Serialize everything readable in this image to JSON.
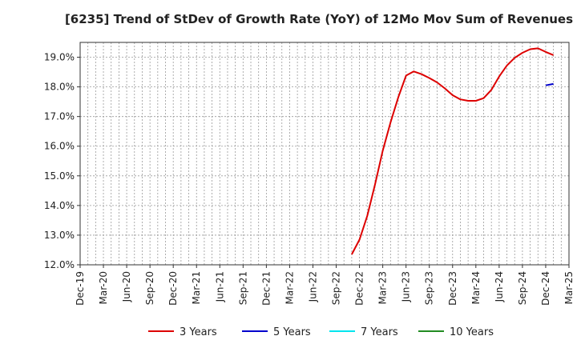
{
  "chart_data": {
    "type": "line",
    "title": "[6235]  Trend of StDev of Growth Rate (YoY) of 12Mo Mov Sum of Revenues",
    "xlabel": "",
    "ylabel": "",
    "ylim": [
      12.0,
      19.5
    ],
    "y_ticks": [
      12.0,
      13.0,
      14.0,
      15.0,
      16.0,
      17.0,
      18.0,
      19.0
    ],
    "y_tick_labels": [
      "12.0%",
      "13.0%",
      "14.0%",
      "15.0%",
      "16.0%",
      "17.0%",
      "18.0%",
      "19.0%"
    ],
    "x_range": [
      0,
      63
    ],
    "x_ticks": [
      0,
      3,
      6,
      9,
      12,
      15,
      18,
      21,
      24,
      27,
      30,
      33,
      36,
      39,
      42,
      45,
      48,
      51,
      54,
      57,
      60,
      63
    ],
    "x_tick_labels": [
      "Dec-19",
      "Mar-20",
      "Jun-20",
      "Sep-20",
      "Dec-20",
      "Mar-21",
      "Jun-21",
      "Sep-21",
      "Dec-21",
      "Mar-22",
      "Jun-22",
      "Sep-22",
      "Dec-22",
      "Mar-23",
      "Jun-23",
      "Sep-23",
      "Dec-23",
      "Mar-24",
      "Jun-24",
      "Sep-24",
      "Dec-24",
      "Mar-25"
    ],
    "grid": true,
    "legend_position": "bottom",
    "series": [
      {
        "name": "3 Years",
        "color": "#dd0000",
        "x": [
          35,
          36,
          37,
          38,
          39,
          40,
          41,
          42,
          43,
          44,
          45,
          46,
          47,
          48,
          49,
          50,
          51,
          52,
          53,
          54,
          55,
          56,
          57,
          58,
          59,
          60,
          61
        ],
        "y": [
          12.35,
          12.85,
          13.65,
          14.7,
          15.85,
          16.8,
          17.65,
          18.38,
          18.52,
          18.43,
          18.3,
          18.15,
          17.95,
          17.72,
          17.58,
          17.53,
          17.53,
          17.62,
          17.9,
          18.35,
          18.72,
          18.98,
          19.15,
          19.27,
          19.3,
          19.18,
          19.07
        ]
      },
      {
        "name": "5 Years",
        "color": "#0000cc",
        "x": [
          60,
          61
        ],
        "y": [
          18.05,
          18.1
        ]
      },
      {
        "name": "7 Years",
        "color": "#00e5ee",
        "x": [],
        "y": []
      },
      {
        "name": "10 Years",
        "color": "#228b22",
        "x": [],
        "y": []
      }
    ]
  }
}
